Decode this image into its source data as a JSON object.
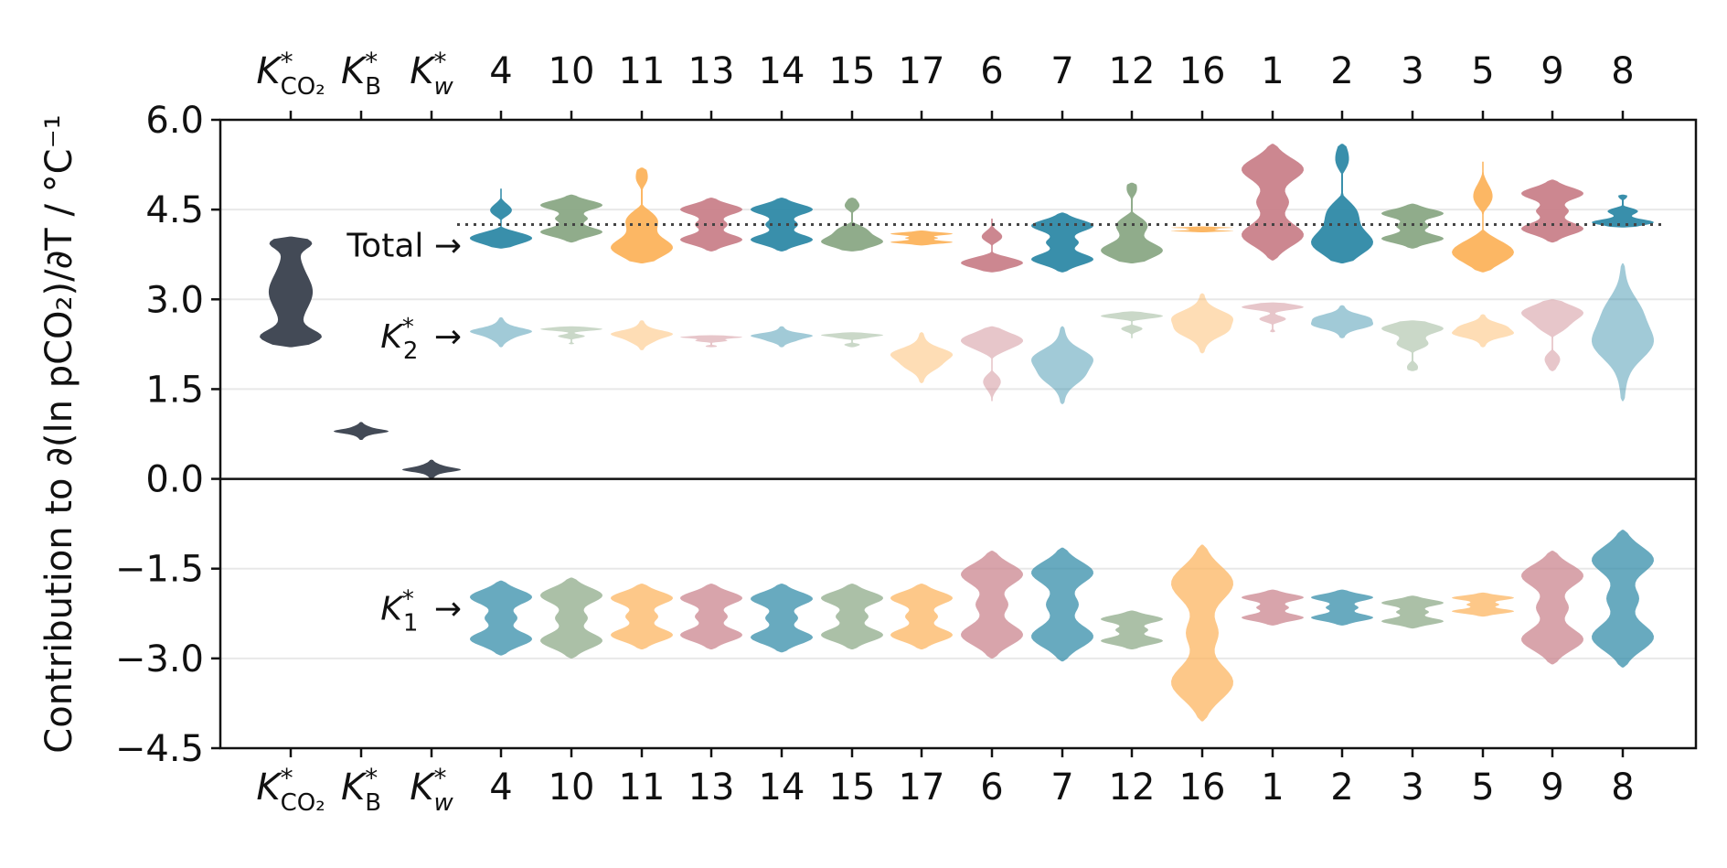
{
  "chart_data": {
    "type": "violin",
    "ylabel": "Contribution to ∂(ln pCO₂)/∂T / °C⁻¹",
    "ylim": [
      -4.5,
      6.0
    ],
    "yticks": [
      "6.0",
      "4.5",
      "3.0",
      "1.5",
      "0.0",
      "−1.5",
      "−3.0",
      "−4.5"
    ],
    "ytick_values": [
      6.0,
      4.5,
      3.0,
      1.5,
      0.0,
      -1.5,
      -3.0,
      -4.5
    ],
    "grid": "horizontal",
    "categories": [
      "K*CO2",
      "K*B",
      "K*w",
      "4",
      "10",
      "11",
      "13",
      "14",
      "15",
      "17",
      "6",
      "7",
      "12",
      "16",
      "1",
      "2",
      "3",
      "5",
      "9",
      "8"
    ],
    "total_reference": 4.25,
    "annotations": {
      "total": "Total →",
      "k2": "K*2 →",
      "k1": "K*1 →"
    },
    "series": [
      {
        "component": "other",
        "category_index": 0,
        "range": [
          2.2,
          4.05
        ],
        "shape": "co2"
      },
      {
        "component": "other",
        "category_index": 1,
        "range": [
          0.65,
          0.95
        ],
        "shape": "small"
      },
      {
        "component": "other",
        "category_index": 2,
        "range": [
          0.0,
          0.32
        ],
        "shape": "base"
      }
    ],
    "groups": [
      {
        "label": "4",
        "color": "#2e89a6",
        "total": [
          3.85,
          4.85
        ],
        "k2": [
          2.2,
          2.7
        ],
        "k1": [
          -2.95,
          -1.7
        ]
      },
      {
        "label": "10",
        "color": "#8aa885",
        "total": [
          3.95,
          4.75
        ],
        "k2": [
          2.25,
          2.55
        ],
        "k1": [
          -3.0,
          -1.65
        ]
      },
      {
        "label": "11",
        "color": "#fcb35c",
        "total": [
          3.6,
          5.2
        ],
        "k2": [
          2.15,
          2.65
        ],
        "k1": [
          -2.85,
          -1.75
        ]
      },
      {
        "label": "13",
        "color": "#c9818a",
        "total": [
          3.8,
          4.7
        ],
        "k2": [
          2.2,
          2.4
        ],
        "k1": [
          -2.85,
          -1.75
        ]
      },
      {
        "label": "14",
        "color": "#2e89a6",
        "total": [
          3.8,
          4.7
        ],
        "k2": [
          2.2,
          2.55
        ],
        "k1": [
          -2.9,
          -1.75
        ]
      },
      {
        "label": "15",
        "color": "#8aa885",
        "total": [
          3.8,
          4.7
        ],
        "k2": [
          2.2,
          2.45
        ],
        "k1": [
          -2.85,
          -1.75
        ]
      },
      {
        "label": "17",
        "color": "#fcb35c",
        "total": [
          3.9,
          4.15
        ],
        "k2": [
          1.6,
          2.45
        ],
        "k1": [
          -2.85,
          -1.75
        ]
      },
      {
        "label": "6",
        "color": "#c9818a",
        "total": [
          3.45,
          4.35
        ],
        "k2": [
          1.3,
          2.55
        ],
        "k1": [
          -3.0,
          -1.2
        ]
      },
      {
        "label": "7",
        "color": "#2e89a6",
        "total": [
          3.45,
          4.45
        ],
        "k2": [
          1.25,
          2.55
        ],
        "k1": [
          -3.05,
          -1.15
        ]
      },
      {
        "label": "12",
        "color": "#8aa885",
        "total": [
          3.6,
          4.95
        ],
        "k2": [
          2.35,
          2.8
        ],
        "k1": [
          -2.85,
          -2.2
        ]
      },
      {
        "label": "16",
        "color": "#fcb35c",
        "total": [
          4.12,
          4.22
        ],
        "k2": [
          2.1,
          3.1
        ],
        "k1": [
          -4.05,
          -1.1
        ]
      },
      {
        "label": "1",
        "color": "#c9818a",
        "total": [
          3.65,
          5.6
        ],
        "k2": [
          2.45,
          2.95
        ],
        "k1": [
          -2.45,
          -1.85
        ]
      },
      {
        "label": "2",
        "color": "#2e89a6",
        "total": [
          3.6,
          5.6
        ],
        "k2": [
          2.35,
          2.9
        ],
        "k1": [
          -2.45,
          -1.85
        ]
      },
      {
        "label": "3",
        "color": "#8aa885",
        "total": [
          3.85,
          4.6
        ],
        "k2": [
          1.8,
          2.65
        ],
        "k1": [
          -2.5,
          -1.95
        ]
      },
      {
        "label": "5",
        "color": "#fcb35c",
        "total": [
          3.45,
          5.3
        ],
        "k2": [
          2.2,
          2.75
        ],
        "k1": [
          -2.3,
          -1.9
        ]
      },
      {
        "label": "9",
        "color": "#c9818a",
        "total": [
          3.95,
          5.0
        ],
        "k2": [
          1.8,
          3.0
        ],
        "k1": [
          -3.1,
          -1.2
        ]
      },
      {
        "label": "8",
        "color": "#2e89a6",
        "total": [
          4.2,
          4.75
        ],
        "k2": [
          1.3,
          3.6
        ],
        "k1": [
          -3.15,
          -0.85
        ]
      }
    ],
    "colors": {
      "dark": "#434a56",
      "teal": "#2e89a6",
      "sage": "#8aa885",
      "orange": "#fcb35c",
      "rose": "#c9818a",
      "reference_line": "#444444",
      "grid": "#e8e8e8"
    }
  }
}
